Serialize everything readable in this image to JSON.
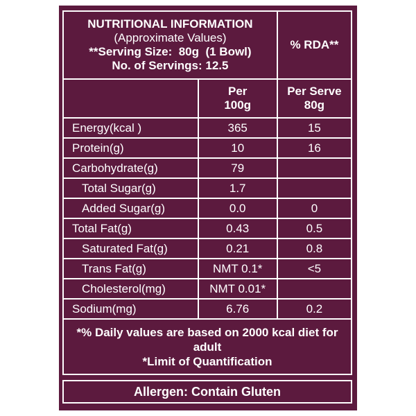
{
  "header": {
    "title": "NUTRITIONAL INFORMATION",
    "subtitle": "(Approximate Values)",
    "serving_size": "**Serving Size:  80g  (1 Bowl)",
    "servings": "No. of Servings: 12.5",
    "rda": "% RDA**"
  },
  "table": {
    "columns": [
      "Per\n100g",
      "Per Serve\n80g"
    ],
    "rows": [
      [
        "Energy(kcal )",
        "365",
        "15"
      ],
      [
        "Protein(g)",
        "10",
        "16"
      ],
      [
        "Carbohydrate(g)",
        "79",
        null
      ],
      [
        "Total Sugar(g)",
        "1.7",
        null
      ],
      [
        "Added Sugar(g)",
        "0.0",
        "0"
      ],
      [
        "Total Fat(g)",
        "0.43",
        "0.5"
      ],
      [
        "Saturated Fat(g)",
        "0.21",
        "0.8"
      ],
      [
        "Trans Fat(g)",
        "NMT 0.1*",
        "<5"
      ],
      [
        "Cholesterol(mg)",
        "NMT 0.01*",
        null
      ],
      [
        "Sodium(mg)",
        "6.76",
        "0.2"
      ]
    ]
  },
  "footer": {
    "notes": [
      "*% Daily values are based on 2000 kcal diet for adult",
      "*Limit of Quantification"
    ],
    "allergen": "Allergen: Contain Gluten"
  }
}
